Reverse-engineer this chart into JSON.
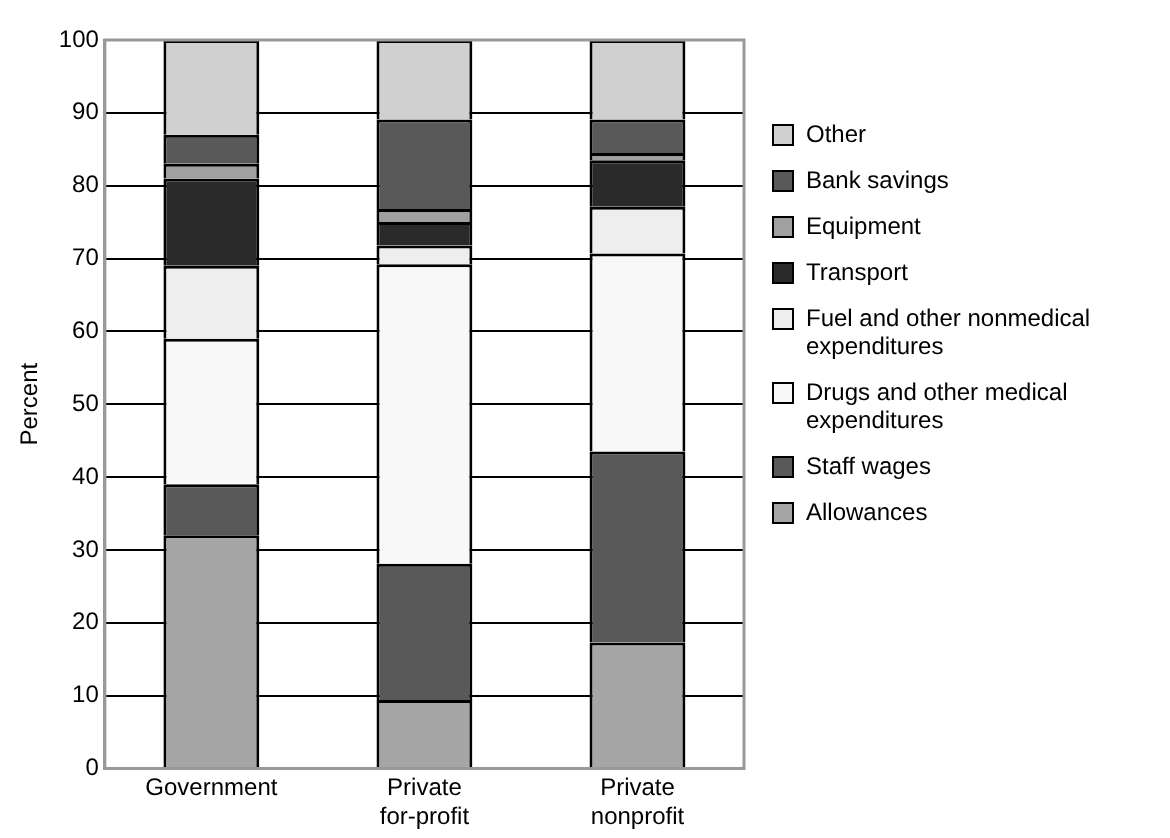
{
  "chart_data": {
    "type": "bar",
    "stacked": true,
    "ylabel": "Percent",
    "categories": [
      "Government",
      "Private for-profit",
      "Private nonprofit"
    ],
    "ylim": [
      0,
      100
    ],
    "yticks": [
      0,
      10,
      20,
      30,
      40,
      50,
      60,
      70,
      80,
      90,
      100
    ],
    "grid": "y",
    "legend": "right",
    "series": [
      {
        "name": "Allowances",
        "color": "#a6a6a6",
        "values": [
          32,
          9.4,
          17.3
        ]
      },
      {
        "name": "Staff wages",
        "color": "#595959",
        "values": [
          7,
          18.7,
          26.2
        ]
      },
      {
        "name": "Drugs and other medical expenditures",
        "color": "#f8f8f8",
        "values": [
          20,
          41.1,
          27.2
        ]
      },
      {
        "name": "Fuel and other nonmedical expenditures",
        "color": "#eeeeee",
        "values": [
          10,
          2.6,
          6.4
        ]
      },
      {
        "name": "Transport",
        "color": "#2a2a2a",
        "values": [
          12,
          3.2,
          6.4
        ]
      },
      {
        "name": "Equipment",
        "color": "#a0a0a0",
        "values": [
          2,
          1.8,
          1
        ]
      },
      {
        "name": "Bank savings",
        "color": "#595959",
        "values": [
          4,
          12.3,
          4.6
        ]
      },
      {
        "name": "Other",
        "color": "#d0d0d0",
        "values": [
          13,
          10.9,
          10.9
        ]
      }
    ]
  }
}
